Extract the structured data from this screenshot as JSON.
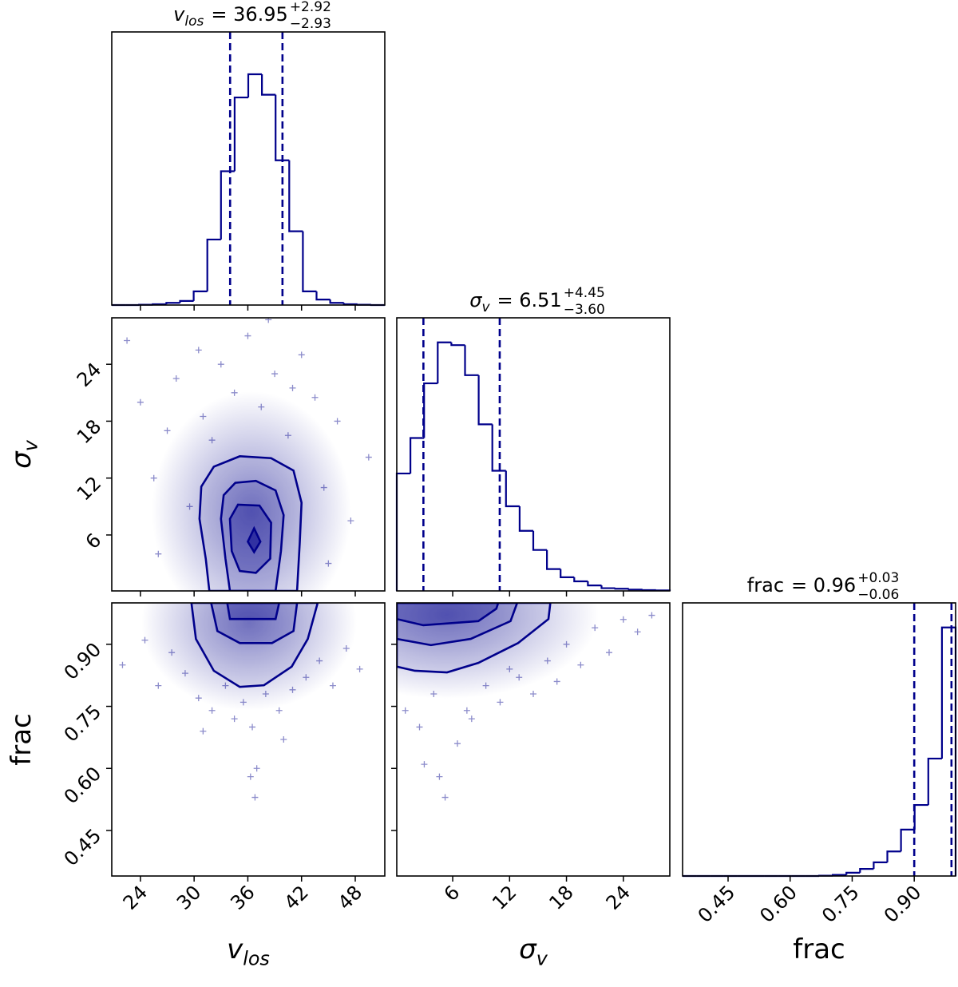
{
  "chart_data": {
    "type": "corner",
    "color": "#00008b",
    "parameters": [
      {
        "label": {
          "base": "v",
          "sub": "los"
        },
        "lim": [
          20.8,
          51.3
        ],
        "ticks": [
          24,
          30,
          36,
          42,
          48
        ],
        "title": {
          "text": "= 36.95",
          "upper": "+2.92",
          "lower": "−2.93"
        },
        "quantiles": [
          34.02,
          39.87
        ],
        "hist": {
          "bins": [
            20.8,
            22.325,
            23.85,
            25.375,
            26.9,
            28.425,
            29.95,
            31.475,
            33.0,
            34.525,
            36.05,
            37.575,
            39.1,
            40.625,
            42.15,
            43.675,
            45.2,
            46.725,
            48.25,
            49.775,
            51.3
          ],
          "counts": [
            0,
            0,
            0.1,
            0.3,
            0.8,
            1.5,
            5,
            24,
            49,
            76,
            84.5,
            77,
            53,
            27,
            5,
            2,
            0.8,
            0.3,
            0.1,
            0
          ],
          "ylim": [
            0,
            100
          ]
        }
      },
      {
        "label": {
          "base": "σ",
          "sub": "v"
        },
        "lim": [
          0.1,
          28.9
        ],
        "ticks": [
          6,
          12,
          18,
          24
        ],
        "title": {
          "text": "= 6.51",
          "upper": "+4.45",
          "lower": "−3.60"
        },
        "quantiles": [
          2.91,
          10.96
        ],
        "hist": {
          "bins": [
            0.1,
            1.54,
            2.98,
            4.42,
            5.86,
            7.3,
            8.74,
            10.18,
            11.62,
            13.06,
            14.5,
            15.94,
            17.38,
            18.82,
            20.26,
            21.7,
            23.14,
            24.58,
            26.02,
            27.46,
            28.9
          ],
          "counts": [
            43,
            56,
            76,
            91,
            90,
            79,
            61,
            44,
            31,
            22,
            15,
            8,
            5,
            3.5,
            2,
            1,
            0.8,
            0.5,
            0.3,
            0.2
          ],
          "ylim": [
            0,
            100
          ]
        }
      },
      {
        "label": {
          "base": "frac"
        },
        "lim": [
          0.34,
          1.0
        ],
        "ticks": [
          0.45,
          {
            "value": 0.6,
            "label": "0.60"
          },
          0.75,
          {
            "value": 0.9,
            "label": "0.90"
          }
        ],
        "title": {
          "text": "= 0.96",
          "upper": "+0.03",
          "lower": "−0.06"
        },
        "quantiles": [
          0.9,
          0.99
        ],
        "hist": {
          "bins": [
            0.34,
            0.373,
            0.406,
            0.439,
            0.472,
            0.505,
            0.538,
            0.571,
            0.604,
            0.637,
            0.67,
            0.703,
            0.736,
            0.769,
            0.802,
            0.835,
            0.868,
            0.901,
            0.934,
            0.967,
            1.0
          ],
          "counts": [
            0,
            0,
            0,
            0,
            0,
            0,
            0,
            0,
            0,
            0,
            0.1,
            0.4,
            1.2,
            2.6,
            5,
            9,
            17,
            26,
            43,
            91
          ],
          "ylim": [
            0,
            100
          ]
        }
      }
    ],
    "pairs": [
      {
        "x": 0,
        "y": 1,
        "points": {
          "x": [
            22.5,
            24.0,
            25.5,
            27.0,
            28.0,
            29.5,
            30.5,
            31.0,
            33.0,
            34.5,
            36.0,
            37.5,
            38.3,
            39.0,
            40.5,
            42.0,
            43.5,
            44.5,
            46.0,
            47.5,
            49.5,
            26.0,
            45.0,
            32.0,
            41.0
          ],
          "y": [
            26.5,
            20.0,
            12.0,
            17.0,
            22.5,
            9.0,
            25.5,
            18.5,
            24.0,
            21.0,
            27.0,
            19.5,
            28.7,
            23.0,
            16.5,
            25.0,
            20.5,
            11.0,
            18.0,
            7.5,
            14.2,
            4.0,
            3.0,
            16.0,
            21.5
          ]
        },
        "contours": [
          {
            "x": [
              31.7,
              31.3,
              30.6,
              30.8,
              32.2,
              35.1,
              38.6,
              41.1,
              42.0,
              41.8,
              41.5
            ],
            "y": [
              0.1,
              3.5,
              7.7,
              11.1,
              13.2,
              14.3,
              14.1,
              12.8,
              9.4,
              5.2,
              0.1
            ]
          },
          {
            "x": [
              34.0,
              33.5,
              33.0,
              33.3,
              34.6,
              36.9,
              39.1,
              40.0,
              39.7,
              39.1
            ],
            "y": [
              0.1,
              3.5,
              7.7,
              10.2,
              11.5,
              11.7,
              10.7,
              8.1,
              4.3,
              0.1
            ]
          },
          {
            "x": [
              34.2,
              34.0,
              34.9,
              37.3,
              38.6,
              38.5,
              36.9,
              35.1
            ],
            "y": [
              4.3,
              7.7,
              9.2,
              9.1,
              7.3,
              3.5,
              2.0,
              2.2
            ]
          },
          {
            "x": [
              36.0,
              36.7,
              37.4,
              36.7
            ],
            "y": [
              5.3,
              6.7,
              5.3,
              4.2
            ]
          }
        ]
      },
      {
        "x": 0,
        "y": 2,
        "points": {
          "x": [
            22.0,
            24.5,
            26.0,
            27.5,
            29.0,
            30.5,
            32.0,
            33.5,
            34.5,
            35.5,
            36.5,
            37.0,
            38.0,
            39.5,
            41.0,
            42.5,
            44.0,
            45.5,
            47.0,
            48.5,
            36.8,
            36.3,
            31.0,
            40.0
          ],
          "y": [
            0.85,
            0.91,
            0.8,
            0.88,
            0.83,
            0.77,
            0.74,
            0.8,
            0.72,
            0.76,
            0.7,
            0.6,
            0.78,
            0.74,
            0.79,
            0.82,
            0.86,
            0.8,
            0.89,
            0.84,
            0.53,
            0.58,
            0.69,
            0.67
          ]
        },
        "contours": [
          {
            "x": [
              29.7,
              30.2,
              32.2,
              35.1,
              37.8,
              40.9,
              42.7,
              43.8
            ],
            "y": [
              1.0,
              0.913,
              0.836,
              0.797,
              0.801,
              0.846,
              0.913,
              1.0
            ]
          },
          {
            "x": [
              31.9,
              32.6,
              35.1,
              38.7,
              41.1,
              41.5
            ],
            "y": [
              1.0,
              0.932,
              0.903,
              0.903,
              0.932,
              1.0
            ]
          },
          {
            "x": [
              33.7,
              34.0,
              39.1,
              39.5
            ],
            "y": [
              1.0,
              0.961,
              0.961,
              1.0
            ]
          }
        ]
      },
      {
        "x": 1,
        "y": 2,
        "points": {
          "x": [
            1.0,
            2.5,
            4.0,
            5.2,
            6.5,
            8.0,
            9.5,
            11.0,
            13.0,
            14.5,
            16.0,
            18.0,
            19.5,
            21.0,
            22.5,
            24.0,
            25.5,
            27.0,
            3.0,
            7.5,
            12.0,
            4.6,
            17.0
          ],
          "y": [
            0.74,
            0.7,
            0.78,
            0.53,
            0.66,
            0.72,
            0.8,
            0.76,
            0.82,
            0.78,
            0.86,
            0.9,
            0.85,
            0.94,
            0.88,
            0.96,
            0.93,
            0.97,
            0.61,
            0.74,
            0.84,
            0.58,
            0.81
          ]
        },
        "contours": [
          {
            "x": [
              0.1,
              0.1,
              2.0,
              5.4,
              8.7,
              12.9,
              16.1,
              16.3
            ],
            "y": [
              1.0,
              0.846,
              0.836,
              0.832,
              0.855,
              0.903,
              0.961,
              1.0
            ]
          },
          {
            "x": [
              0.1,
              0.1,
              3.7,
              7.9,
              12.1,
              12.8
            ],
            "y": [
              1.0,
              0.913,
              0.898,
              0.913,
              0.956,
              1.0
            ]
          },
          {
            "x": [
              0.1,
              0.1,
              2.9,
              8.7,
              10.6,
              10.8
            ],
            "y": [
              1.0,
              0.961,
              0.946,
              0.956,
              0.986,
              1.0
            ]
          }
        ]
      }
    ]
  }
}
